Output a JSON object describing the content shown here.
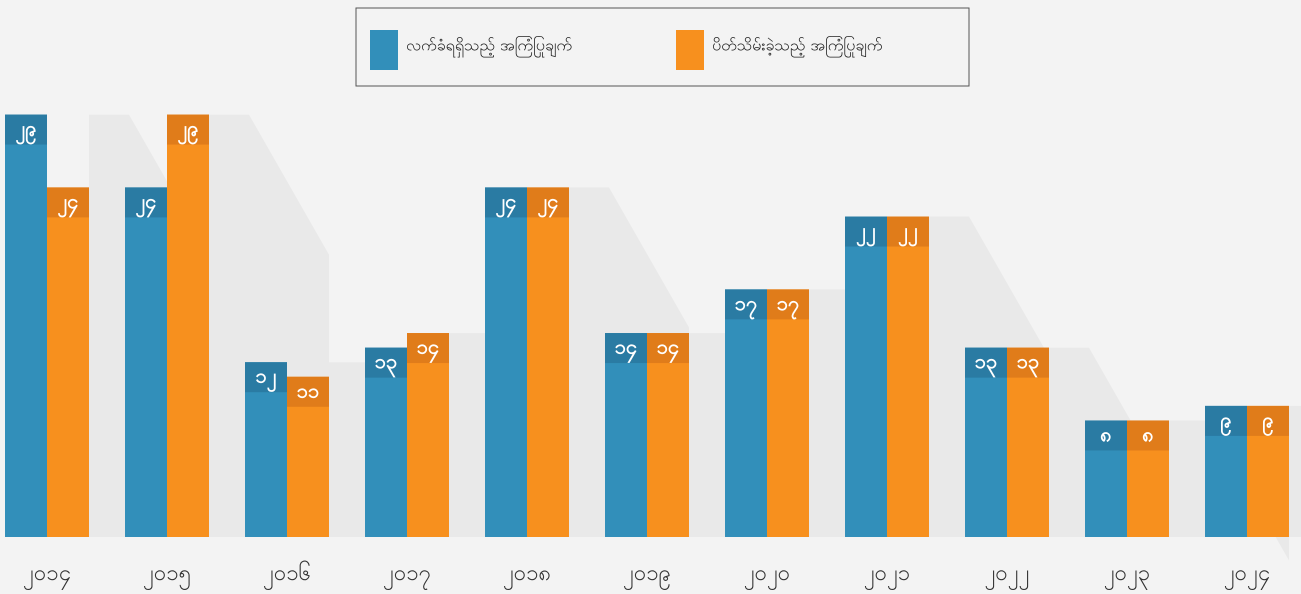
{
  "chart_data": {
    "type": "bar",
    "categories": [
      "၂၀၁၄",
      "၂၀၁၅",
      "၂၀၁၆",
      "၂၀၁၇",
      "၂၀၁၈",
      "၂၀၁၉",
      "၂၀၂၀",
      "၂၀၂၁",
      "၂၀၂၂",
      "၂၀၂၃",
      "၂၀၂၄"
    ],
    "series": [
      {
        "name": "လက်ခံရရှိသည့် အကြံပြုချက်",
        "color": "#328fba",
        "label_color": "#2a7ba3",
        "values": [
          29,
          24,
          12,
          13,
          24,
          14,
          17,
          22,
          13,
          8,
          9
        ],
        "value_labels": [
          "၂၉",
          "၂၄",
          "၁၂",
          "၁၃",
          "၂၄",
          "၁၄",
          "၁၇",
          "၂၂",
          "၁၃",
          "၈",
          "၉"
        ]
      },
      {
        "name": "ပိတ်သိမ်းခဲ့သည့် အကြံပြုချက်",
        "color": "#f7901e",
        "label_color": "#e07c1a",
        "values": [
          24,
          29,
          11,
          14,
          24,
          14,
          17,
          22,
          13,
          8,
          9
        ],
        "value_labels": [
          "၂၄",
          "၂၉",
          "၁၁",
          "၁၄",
          "၂၄",
          "၁၄",
          "၁၇",
          "၂၂",
          "၁၃",
          "၈",
          "၉"
        ]
      }
    ],
    "ylim": [
      0,
      30
    ],
    "legend": "top"
  }
}
